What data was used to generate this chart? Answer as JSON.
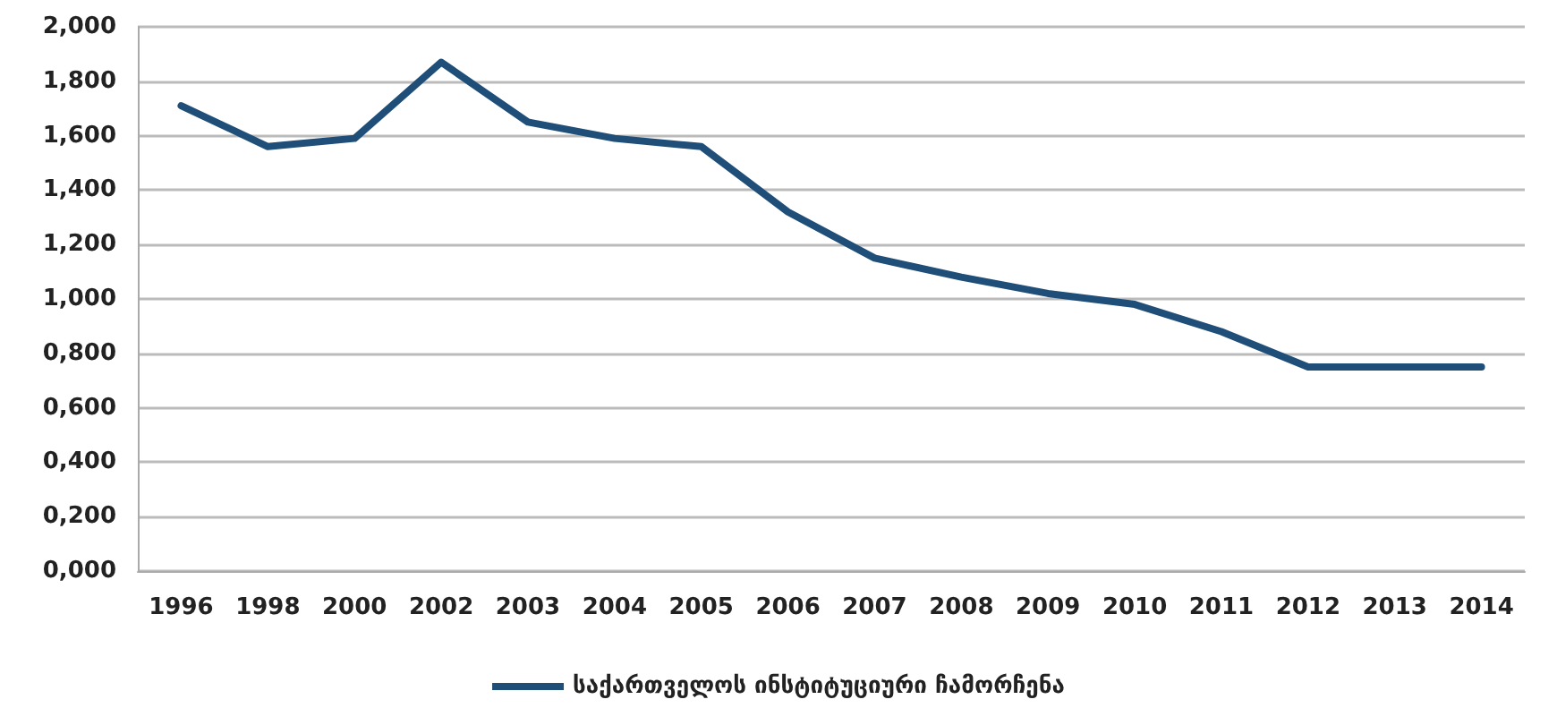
{
  "chart_data": {
    "type": "line",
    "categories": [
      "1996",
      "1998",
      "2000",
      "2002",
      "2003",
      "2004",
      "2005",
      "2006",
      "2007",
      "2008",
      "2009",
      "2010",
      "2011",
      "2012",
      "2013",
      "2014"
    ],
    "series": [
      {
        "name": "საქართველოს ინსტიტუციური ჩამორჩენა",
        "color": "#1f4e79",
        "values": [
          1.71,
          1.56,
          1.59,
          1.87,
          1.65,
          1.59,
          1.56,
          1.32,
          1.15,
          1.08,
          1.02,
          0.98,
          0.88,
          0.75,
          0.75,
          0.75
        ]
      }
    ],
    "ylim": [
      0,
      2
    ],
    "yticks": [
      {
        "value": 0,
        "label": "0,000"
      },
      {
        "value": 0.2,
        "label": "0,200"
      },
      {
        "value": 0.4,
        "label": "0,400"
      },
      {
        "value": 0.6,
        "label": "0,600"
      },
      {
        "value": 0.8,
        "label": "0,800"
      },
      {
        "value": 1,
        "label": "1,000"
      },
      {
        "value": 1.2,
        "label": "1,200"
      },
      {
        "value": 1.4,
        "label": "1,400"
      },
      {
        "value": 1.6,
        "label": "1,600"
      },
      {
        "value": 1.8,
        "label": "1,800"
      },
      {
        "value": 2,
        "label": "2,000"
      }
    ],
    "grid": "y",
    "legend": "bottom",
    "marker": "none",
    "line_style": "solid"
  }
}
